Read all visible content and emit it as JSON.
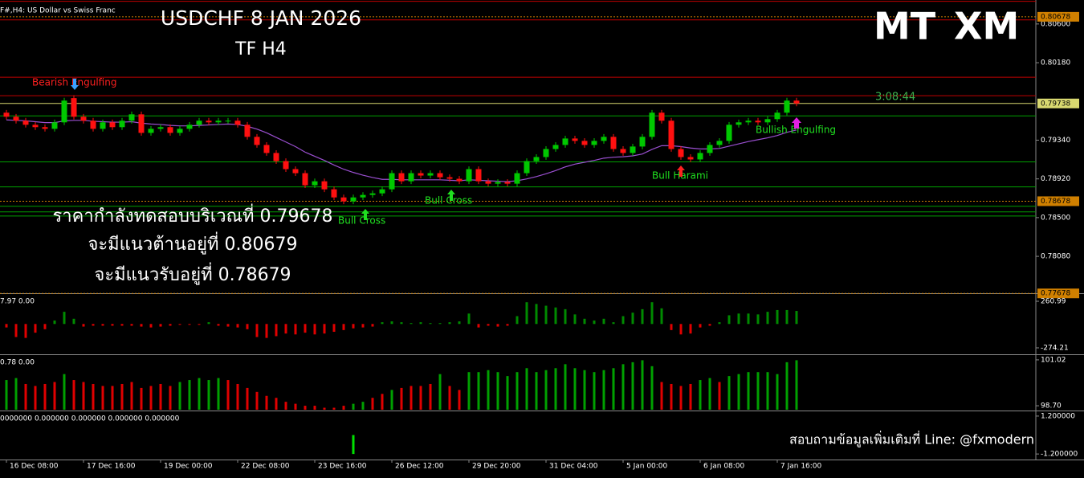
{
  "chart_data": [
    {
      "type": "candlestick",
      "title": "USDCHF  8 JAN 2026",
      "subtitle": "TF H4",
      "symbol_label": "F#,H4:  US Dollar vs Swiss Franc",
      "logo": [
        "MT",
        "XM"
      ],
      "clock": "3:08:44",
      "notes": [
        "ราคากำลังทดสอบบริเวณที่ 0.79678",
        "จะมีแนวต้านอยู่ที่ 0.80679",
        "จะมีแนวรับอยู่ที่ 0.78679"
      ],
      "annotations": [
        "Bearish Engulfing",
        "Bull Cross",
        "Bull Cross",
        "Bull Harami",
        "Bullish Engulfing"
      ],
      "contact": "สอบถามข้อมูลเพิ่มเติมที่ Line: @fxmodern",
      "categories": [
        "16 Dec 08:00",
        null,
        null,
        null,
        null,
        null,
        null,
        null,
        "17 Dec 16:00",
        null,
        null,
        null,
        null,
        null,
        null,
        null,
        "19 Dec 00:00",
        null,
        null,
        null,
        null,
        null,
        null,
        null,
        "22 Dec 08:00",
        null,
        null,
        null,
        null,
        null,
        null,
        null,
        "23 Dec 16:00",
        null,
        null,
        null,
        null,
        null,
        null,
        null,
        "26 Dec 12:00",
        null,
        null,
        null,
        null,
        null,
        null,
        null,
        "29 Dec 20:00",
        null,
        null,
        null,
        null,
        null,
        null,
        null,
        "31 Dec 04:00",
        null,
        null,
        null,
        null,
        null,
        null,
        null,
        "5 Jan 00:00",
        null,
        null,
        null,
        null,
        null,
        null,
        null,
        "6 Jan 08:00",
        null,
        null,
        null,
        null,
        null,
        null,
        null,
        "7 Jan 16:00",
        null,
        null
      ],
      "open": [
        0.79638,
        0.79594,
        0.79551,
        0.79507,
        0.79481,
        0.79463,
        0.79533,
        0.79796,
        0.79594,
        0.79551,
        0.79463,
        0.79533,
        0.79481,
        0.79551,
        0.7962,
        0.79419,
        0.79463,
        0.79481,
        0.79419,
        0.79463,
        0.79507,
        0.79551,
        0.79533,
        0.79551,
        0.79551,
        0.79507,
        0.79376,
        0.79288,
        0.79201,
        0.79113,
        0.79026,
        0.78982,
        0.78851,
        0.78894,
        0.78807,
        0.78719,
        0.78676,
        0.78719,
        0.78746,
        0.78763,
        0.78807,
        0.78982,
        0.78894,
        0.78982,
        0.78956,
        0.78982,
        0.78938,
        0.78921,
        0.78894,
        0.79026,
        0.78894,
        0.78868,
        0.78886,
        0.78868,
        0.78982,
        0.79113,
        0.79157,
        0.79244,
        0.79288,
        0.79358,
        0.79332,
        0.79288,
        0.79332,
        0.79376,
        0.79244,
        0.79201,
        0.79271,
        0.79376,
        0.79638,
        0.79551,
        0.79244,
        0.79157,
        0.79131,
        0.79201,
        0.79288,
        0.79332,
        0.79507,
        0.79533,
        0.79551,
        0.79533,
        0.79568,
        0.79638,
        0.79769
      ],
      "high": [
        0.79668,
        0.79624,
        0.79581,
        0.79537,
        0.79511,
        0.79563,
        0.79799,
        0.79826,
        0.79624,
        0.79581,
        0.79563,
        0.79563,
        0.79581,
        0.7965,
        0.7965,
        0.79493,
        0.79511,
        0.79511,
        0.79493,
        0.79537,
        0.79581,
        0.79581,
        0.79581,
        0.79581,
        0.79581,
        0.79537,
        0.79406,
        0.79318,
        0.79231,
        0.79143,
        0.79056,
        0.79012,
        0.78924,
        0.78924,
        0.78837,
        0.78749,
        0.78749,
        0.78776,
        0.78793,
        0.78837,
        0.79012,
        0.79012,
        0.79012,
        0.79012,
        0.79012,
        0.79012,
        0.78968,
        0.78951,
        0.79056,
        0.79056,
        0.78924,
        0.78916,
        0.78916,
        0.79012,
        0.79143,
        0.79187,
        0.79274,
        0.79318,
        0.79388,
        0.79388,
        0.79362,
        0.79362,
        0.79406,
        0.79406,
        0.79274,
        0.79301,
        0.79406,
        0.79668,
        0.79668,
        0.79581,
        0.79274,
        0.79187,
        0.79231,
        0.79318,
        0.79362,
        0.79537,
        0.79563,
        0.79581,
        0.79581,
        0.79598,
        0.79668,
        0.79799,
        0.79799
      ],
      "low": [
        0.79564,
        0.79521,
        0.79477,
        0.79451,
        0.79433,
        0.79433,
        0.79503,
        0.79564,
        0.79521,
        0.79433,
        0.79433,
        0.79451,
        0.79451,
        0.79521,
        0.79389,
        0.79389,
        0.79433,
        0.79389,
        0.79389,
        0.79433,
        0.79477,
        0.79503,
        0.79503,
        0.79521,
        0.79477,
        0.79346,
        0.79258,
        0.79171,
        0.79083,
        0.78996,
        0.78952,
        0.78821,
        0.78821,
        0.78777,
        0.78689,
        0.78646,
        0.78646,
        0.78689,
        0.78716,
        0.78733,
        0.78777,
        0.78864,
        0.78864,
        0.78926,
        0.78926,
        0.78908,
        0.78891,
        0.78864,
        0.78864,
        0.78864,
        0.78838,
        0.78838,
        0.78838,
        0.78838,
        0.78952,
        0.79083,
        0.79127,
        0.79214,
        0.79258,
        0.79302,
        0.79258,
        0.79258,
        0.79302,
        0.79214,
        0.79171,
        0.79171,
        0.79241,
        0.79346,
        0.79521,
        0.79214,
        0.79127,
        0.79101,
        0.79101,
        0.79171,
        0.79258,
        0.79302,
        0.79477,
        0.79503,
        0.79503,
        0.79503,
        0.79538,
        0.79608,
        0.79708
      ],
      "close": [
        0.79594,
        0.79551,
        0.79507,
        0.79481,
        0.79463,
        0.79533,
        0.79769,
        0.79594,
        0.79551,
        0.79463,
        0.79533,
        0.79481,
        0.79551,
        0.7962,
        0.79419,
        0.79463,
        0.79481,
        0.79419,
        0.79463,
        0.79507,
        0.79551,
        0.79533,
        0.79551,
        0.79551,
        0.79507,
        0.79376,
        0.79288,
        0.79201,
        0.79113,
        0.79026,
        0.78982,
        0.78851,
        0.78894,
        0.78807,
        0.78719,
        0.78676,
        0.78719,
        0.78746,
        0.78763,
        0.78807,
        0.78982,
        0.78894,
        0.78982,
        0.78956,
        0.78982,
        0.78938,
        0.78921,
        0.78894,
        0.79026,
        0.78894,
        0.78868,
        0.78886,
        0.78868,
        0.78982,
        0.79113,
        0.79157,
        0.79244,
        0.79288,
        0.79358,
        0.79332,
        0.79288,
        0.79332,
        0.79376,
        0.79244,
        0.79201,
        0.79271,
        0.79376,
        0.79638,
        0.79551,
        0.79244,
        0.79157,
        0.79131,
        0.79201,
        0.79288,
        0.79332,
        0.79507,
        0.79533,
        0.79551,
        0.79533,
        0.79568,
        0.79638,
        0.79769,
        0.79738
      ],
      "ma": [
        0.7956,
        0.79555,
        0.7955,
        0.7954,
        0.7953,
        0.7953,
        0.7955,
        0.79555,
        0.79555,
        0.79545,
        0.7954,
        0.79535,
        0.79535,
        0.7954,
        0.79525,
        0.79515,
        0.7951,
        0.795,
        0.79495,
        0.79495,
        0.795,
        0.79505,
        0.7951,
        0.79515,
        0.7951,
        0.7949,
        0.7946,
        0.7942,
        0.7937,
        0.7932,
        0.7927,
        0.7921,
        0.79165,
        0.7912,
        0.7907,
        0.79025,
        0.7899,
        0.7896,
        0.78935,
        0.78915,
        0.78915,
        0.7891,
        0.7891,
        0.7891,
        0.7891,
        0.7891,
        0.78905,
        0.789,
        0.7891,
        0.78905,
        0.789,
        0.78895,
        0.7889,
        0.789,
        0.7892,
        0.78945,
        0.78975,
        0.7901,
        0.7905,
        0.7908,
        0.791,
        0.7912,
        0.79145,
        0.79155,
        0.7916,
        0.7917,
        0.7919,
        0.7924,
        0.7928,
        0.7928,
        0.7927,
        0.79255,
        0.79245,
        0.79245,
        0.7925,
        0.79275,
        0.793,
        0.79325,
        0.79345,
        0.79365,
        0.7939,
        0.79425,
        0.7945
      ],
      "ma_color": "#9a4fd0",
      "up_color": "#00c800",
      "down_color": "#ff1010",
      "levels": [
        {
          "value": 0.80846,
          "color": "#c00000"
        },
        {
          "value": 0.80678,
          "color": "#d08000",
          "dash": true,
          "label": "0.80678"
        },
        {
          "value": 0.80644,
          "color": "#c00000"
        },
        {
          "value": 0.80023,
          "color": "#c00000"
        },
        {
          "value": 0.79822,
          "color": "#c00000"
        },
        {
          "value": 0.79738,
          "color": "#d8d870",
          "label": "0.79738"
        },
        {
          "value": 0.79603,
          "color": "#00a000"
        },
        {
          "value": 0.79104,
          "color": "#00a000"
        },
        {
          "value": 0.78833,
          "color": "#00a000"
        },
        {
          "value": 0.78678,
          "color": "#d08000",
          "dash": true,
          "label": "0.78678"
        },
        {
          "value": 0.78623,
          "color": "#00a000"
        },
        {
          "value": 0.78562,
          "color": "#00a000"
        },
        {
          "value": 0.78518,
          "color": "#00a000"
        },
        {
          "value": 0.77678,
          "color": "#d08000",
          "dash": true,
          "label": "0.77678"
        }
      ],
      "ylim": [
        0.7768,
        0.8086
      ],
      "yticks": [
        {
          "value": 0.806,
          "label": "0.80600"
        },
        {
          "value": 0.8018,
          "label": "0.80180"
        },
        {
          "value": 0.7934,
          "label": "0.79340"
        },
        {
          "value": 0.7892,
          "label": "0.78920"
        },
        {
          "value": 0.785,
          "label": "0.78500"
        },
        {
          "value": 0.7808,
          "label": "0.78080"
        }
      ]
    },
    {
      "type": "bar",
      "label": "7.97 0.00",
      "up_color": "#008a00",
      "down_color": "#e00000",
      "values": [
        -40,
        -150,
        -160,
        -100,
        -60,
        40,
        140,
        60,
        -30,
        -20,
        -20,
        -20,
        -20,
        -20,
        -30,
        -40,
        -30,
        -20,
        -10,
        -10,
        -10,
        20,
        -20,
        -30,
        -40,
        -60,
        -150,
        -160,
        -140,
        -110,
        -120,
        -100,
        -120,
        -110,
        -90,
        -70,
        -50,
        -40,
        -30,
        20,
        30,
        20,
        10,
        20,
        10,
        10,
        20,
        30,
        120,
        -40,
        -20,
        -30,
        -20,
        90,
        250,
        230,
        210,
        190,
        170,
        110,
        60,
        40,
        60,
        20,
        90,
        130,
        170,
        250,
        180,
        -70,
        -120,
        -110,
        -40,
        -20,
        20,
        100,
        120,
        120,
        110,
        140,
        160,
        160,
        150
      ],
      "ylim": [
        -339,
        335
      ],
      "yticks": [
        260.99,
        -274.21
      ]
    },
    {
      "type": "bar",
      "label": "0.78 0.00",
      "values": [
        100.0,
        100.1,
        99.8,
        99.7,
        99.8,
        99.9,
        100.3,
        100.0,
        99.9,
        99.8,
        99.7,
        99.7,
        99.8,
        99.9,
        99.6,
        99.7,
        99.8,
        99.7,
        99.9,
        100.0,
        100.1,
        100.0,
        100.1,
        100.0,
        99.8,
        99.6,
        99.4,
        99.2,
        99.1,
        98.9,
        98.8,
        98.7,
        98.7,
        98.6,
        98.6,
        98.7,
        98.8,
        98.9,
        99.1,
        99.3,
        99.5,
        99.6,
        99.7,
        99.7,
        99.8,
        100.3,
        99.7,
        99.5,
        100.4,
        100.4,
        100.5,
        100.4,
        100.2,
        100.4,
        100.6,
        100.4,
        100.5,
        100.6,
        100.8,
        100.6,
        100.5,
        100.4,
        100.5,
        100.6,
        100.8,
        100.9,
        101.0,
        100.7,
        99.9,
        99.8,
        99.7,
        99.8,
        100.0,
        100.1,
        99.9,
        100.2,
        100.3,
        100.4,
        100.4,
        100.4,
        100.3,
        100.9,
        101.0
      ],
      "colors": [
        "#00a000",
        "#00a000",
        "#e00000",
        "#e00000",
        "#e00000",
        "#e00000",
        "#00a000",
        "#e00000",
        "#e00000",
        "#e00000",
        "#e00000",
        "#e00000",
        "#e00000",
        "#e00000",
        "#e00000",
        "#e00000",
        "#e00000",
        "#e00000",
        "#00a000",
        "#00a000",
        "#00a000",
        "#00a000",
        "#00a000",
        "#e00000",
        "#e00000",
        "#e00000",
        "#e00000",
        "#e00000",
        "#e00000",
        "#e00000",
        "#e00000",
        "#e00000",
        "#e00000",
        "#e00000",
        "#e00000",
        "#e00000",
        "#00a000",
        "#00a000",
        "#e00000",
        "#e00000",
        "#00a000",
        "#e00000",
        "#e00000",
        "#e00000",
        "#e00000",
        "#00a000",
        "#e00000",
        "#e00000",
        "#00a000",
        "#00a000",
        "#00a000",
        "#00a000",
        "#00a000",
        "#00a000",
        "#00a000",
        "#00a000",
        "#00a000",
        "#00a000",
        "#00a000",
        "#00a000",
        "#00a000",
        "#00a000",
        "#00a000",
        "#00a000",
        "#00a000",
        "#00a000",
        "#00a000",
        "#00a000",
        "#e00000",
        "#e00000",
        "#e00000",
        "#e00000",
        "#00a000",
        "#00a000",
        "#e00000",
        "#00a000",
        "#00a000",
        "#00a000",
        "#00a000",
        "#00a000",
        "#00a000",
        "#00a000",
        "#00a000"
      ],
      "ylim": [
        98.5,
        101.22
      ],
      "yticks": [
        {
          "value": 101.02,
          "label": "101.02"
        },
        {
          "value": 98.7,
          "label": "98.70"
        }
      ]
    },
    {
      "type": "bar",
      "label": "0000000 0.000000 0.000000 0.000000 0.000000",
      "up_color": "#00e000",
      "down_color": "#00e000",
      "values": [
        0,
        0,
        0,
        0,
        0,
        0,
        0,
        0,
        0,
        0,
        0,
        0,
        0,
        0,
        0,
        0,
        0,
        0,
        0,
        0,
        0,
        0,
        0,
        0,
        0,
        0,
        0,
        0,
        0,
        0,
        0,
        0,
        0,
        0,
        0,
        0,
        -1.2,
        0,
        0,
        0,
        0,
        0,
        0,
        0,
        0,
        0,
        0,
        0,
        0,
        0,
        0,
        0,
        0,
        0,
        0,
        0,
        0,
        0,
        0,
        0,
        0,
        0,
        0,
        0,
        0,
        0,
        0,
        0,
        0,
        0,
        0,
        0,
        0,
        0,
        0,
        0,
        0,
        0,
        0,
        0,
        0,
        0,
        0
      ],
      "ylim": [
        -1.55,
        1.45
      ],
      "yticks": [
        {
          "value": 1.2,
          "label": "1.200000"
        },
        {
          "value": -1.2,
          "label": "-1.200000"
        }
      ]
    }
  ]
}
